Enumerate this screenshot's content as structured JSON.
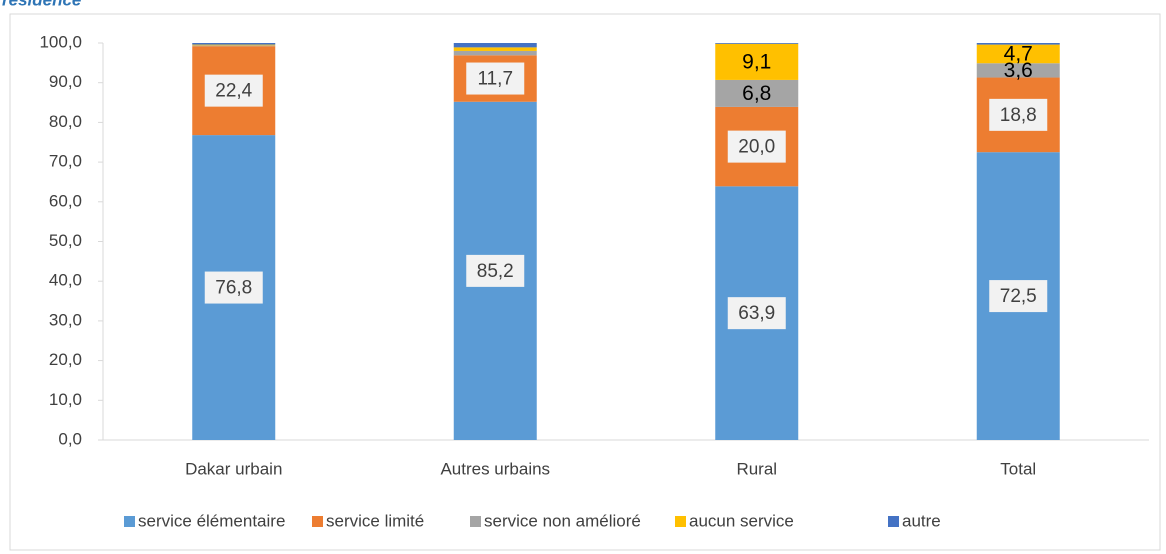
{
  "chart_data": {
    "type": "stacked_bar",
    "title": "résidence",
    "categories": [
      "Dakar urbain",
      "Autres urbains",
      "Rural",
      "Total"
    ],
    "series": [
      {
        "name": "service élémentaire",
        "color": "#5b9bd5",
        "values": [
          76.8,
          85.2,
          63.9,
          72.5
        ],
        "value_labels": [
          "76,8",
          "85,2",
          "63,9",
          "72,5"
        ]
      },
      {
        "name": "service limité",
        "color": "#ed7d31",
        "values": [
          22.4,
          11.7,
          20.0,
          18.8
        ],
        "value_labels": [
          "22,4",
          "11,7",
          "20,0",
          "18,8"
        ]
      },
      {
        "name": "service non amélioré",
        "color": "#a5a5a5",
        "values": [
          0.2,
          1.1,
          6.8,
          3.6
        ],
        "value_labels": [
          null,
          null,
          "6,8",
          "3,6"
        ]
      },
      {
        "name": "aucun service",
        "color": "#ffc000",
        "values": [
          0.2,
          0.9,
          9.1,
          4.7
        ],
        "value_labels": [
          null,
          null,
          "9,1",
          "4,7"
        ]
      },
      {
        "name": "autre",
        "color": "#4472c4",
        "values": [
          0.4,
          1.1,
          0.2,
          0.4
        ],
        "value_labels": [
          null,
          null,
          null,
          null
        ]
      }
    ],
    "ylim": [
      0,
      100
    ],
    "yticks": [
      {
        "value": 0,
        "label": "0,0"
      },
      {
        "value": 10,
        "label": "10,0"
      },
      {
        "value": 20,
        "label": "20,0"
      },
      {
        "value": 30,
        "label": "30,0"
      },
      {
        "value": 40,
        "label": "40,0"
      },
      {
        "value": 50,
        "label": "50,0"
      },
      {
        "value": 60,
        "label": "60,0"
      },
      {
        "value": 70,
        "label": "70,0"
      },
      {
        "value": 80,
        "label": "80,0"
      },
      {
        "value": 90,
        "label": "90,0"
      },
      {
        "value": 100,
        "label": "100,0"
      }
    ],
    "legend": "bottom"
  }
}
